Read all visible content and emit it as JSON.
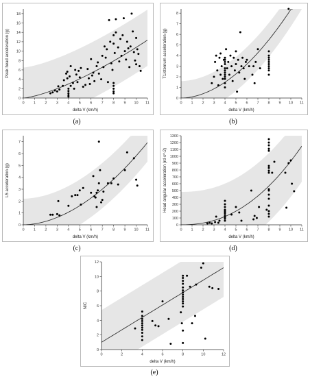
{
  "captions": {
    "a": "(a)",
    "b": "(b)",
    "c": "(c)",
    "d": "(d)",
    "e": "(e)"
  },
  "chart_data": [
    {
      "id": "a",
      "type": "scatter",
      "title": "",
      "xlabel": "delta V (km/h)",
      "ylabel": "Peak head acceleration (g)",
      "xlim": [
        0,
        11
      ],
      "ylim": [
        0,
        19
      ],
      "xticks": [
        0,
        1,
        2,
        3,
        4,
        5,
        6,
        7,
        8,
        9,
        10,
        11
      ],
      "yticks": [
        0,
        2,
        4,
        6,
        8,
        10,
        12,
        14,
        16,
        18
      ],
      "fit": {
        "kind": "power",
        "a": 0.43,
        "b": 1.4
      },
      "band": {
        "lower_offset": -5.5,
        "upper_offset": 6.5
      },
      "points": [
        [
          2.4,
          1.0
        ],
        [
          2.6,
          1.2
        ],
        [
          2.8,
          1.6
        ],
        [
          3.0,
          1.4
        ],
        [
          3.1,
          2.5
        ],
        [
          3.2,
          1.8
        ],
        [
          3.5,
          2.6
        ],
        [
          3.6,
          3.8
        ],
        [
          3.8,
          5.2
        ],
        [
          3.9,
          5.6
        ],
        [
          3.9,
          4.2
        ],
        [
          4.0,
          2.0
        ],
        [
          4.0,
          1.5
        ],
        [
          4.0,
          1.0
        ],
        [
          4.0,
          0.6
        ],
        [
          4.0,
          0.3
        ],
        [
          4.1,
          4.6
        ],
        [
          4.2,
          6.8
        ],
        [
          4.2,
          2.6
        ],
        [
          4.4,
          3.2
        ],
        [
          4.5,
          2.0
        ],
        [
          4.6,
          6.0
        ],
        [
          4.7,
          5.0
        ],
        [
          4.8,
          3.4
        ],
        [
          4.9,
          5.8
        ],
        [
          5.0,
          4.4
        ],
        [
          5.1,
          6.4
        ],
        [
          5.3,
          2.4
        ],
        [
          5.5,
          2.8
        ],
        [
          5.7,
          6.2
        ],
        [
          5.8,
          4.2
        ],
        [
          5.9,
          3.0
        ],
        [
          6.0,
          8.3
        ],
        [
          6.1,
          4.8
        ],
        [
          6.2,
          5.4
        ],
        [
          6.3,
          3.6
        ],
        [
          6.5,
          6.8
        ],
        [
          6.6,
          7.6
        ],
        [
          6.7,
          5.2
        ],
        [
          6.9,
          4.0
        ],
        [
          7.0,
          9.0
        ],
        [
          7.1,
          6.6
        ],
        [
          7.2,
          11.0
        ],
        [
          7.3,
          8.6
        ],
        [
          7.4,
          10.4
        ],
        [
          7.5,
          3.4
        ],
        [
          7.6,
          16.6
        ],
        [
          7.7,
          12.0
        ],
        [
          7.8,
          7.4
        ],
        [
          7.9,
          6.0
        ],
        [
          8.0,
          3.2
        ],
        [
          8.0,
          2.6
        ],
        [
          8.0,
          2.0
        ],
        [
          8.0,
          1.4
        ],
        [
          8.0,
          1.0
        ],
        [
          8.0,
          13.4
        ],
        [
          8.0,
          11.6
        ],
        [
          8.1,
          9.6
        ],
        [
          8.2,
          16.8
        ],
        [
          8.2,
          14.0
        ],
        [
          8.4,
          10.8
        ],
        [
          8.5,
          7.8
        ],
        [
          8.6,
          12.6
        ],
        [
          8.7,
          9.0
        ],
        [
          8.8,
          13.4
        ],
        [
          8.9,
          17.0
        ],
        [
          9.0,
          10.0
        ],
        [
          9.1,
          8.2
        ],
        [
          9.2,
          12.0
        ],
        [
          9.3,
          10.6
        ],
        [
          9.4,
          6.6
        ],
        [
          9.5,
          11.0
        ],
        [
          9.6,
          18.0
        ],
        [
          9.7,
          14.2
        ],
        [
          9.8,
          9.8
        ],
        [
          9.9,
          8.0
        ],
        [
          10.0,
          12.8
        ],
        [
          10.0,
          7.2
        ],
        [
          10.1,
          10.4
        ],
        [
          10.2,
          9.4
        ],
        [
          10.3,
          6.8
        ],
        [
          10.4,
          5.8
        ]
      ]
    },
    {
      "id": "b",
      "type": "scatter",
      "title": "",
      "xlabel": "delta V (km/h)",
      "ylabel": "T1/sternum acceleration (g)",
      "xlim": [
        0,
        11
      ],
      "ylim": [
        0,
        8.4
      ],
      "xticks": [
        0,
        1,
        2,
        3,
        4,
        5,
        6,
        7,
        8,
        9,
        10,
        11
      ],
      "yticks": [
        0,
        1,
        2,
        3,
        4,
        5,
        6,
        7,
        8
      ],
      "fit": {
        "kind": "power",
        "a": 0.11,
        "b": 1.88
      },
      "band": {
        "lower_offset": -1.6,
        "upper_offset": 1.6
      },
      "points": [
        [
          2.8,
          1.4
        ],
        [
          3.0,
          2.0
        ],
        [
          3.1,
          3.4
        ],
        [
          3.2,
          4.0
        ],
        [
          3.3,
          2.6
        ],
        [
          3.4,
          1.2
        ],
        [
          3.5,
          3.8
        ],
        [
          3.6,
          2.2
        ],
        [
          3.6,
          4.2
        ],
        [
          3.7,
          3.0
        ],
        [
          3.8,
          1.8
        ],
        [
          3.9,
          3.6
        ],
        [
          4.0,
          1.0
        ],
        [
          4.0,
          1.4
        ],
        [
          4.0,
          1.8
        ],
        [
          4.0,
          2.0
        ],
        [
          4.0,
          2.2
        ],
        [
          4.0,
          2.4
        ],
        [
          4.0,
          2.6
        ],
        [
          4.0,
          2.8
        ],
        [
          4.0,
          3.2
        ],
        [
          4.0,
          3.4
        ],
        [
          4.0,
          3.6
        ],
        [
          4.0,
          3.8
        ],
        [
          4.1,
          4.6
        ],
        [
          4.2,
          2.8
        ],
        [
          4.3,
          3.4
        ],
        [
          4.4,
          2.2
        ],
        [
          4.5,
          4.0
        ],
        [
          4.6,
          3.0
        ],
        [
          4.7,
          1.6
        ],
        [
          4.8,
          3.8
        ],
        [
          4.9,
          2.6
        ],
        [
          5.0,
          4.4
        ],
        [
          5.0,
          3.2
        ],
        [
          5.1,
          0.6
        ],
        [
          5.2,
          3.6
        ],
        [
          5.3,
          2.4
        ],
        [
          5.4,
          6.2
        ],
        [
          5.5,
          3.0
        ],
        [
          5.6,
          3.8
        ],
        [
          5.7,
          2.8
        ],
        [
          5.8,
          1.8
        ],
        [
          5.9,
          3.4
        ],
        [
          6.0,
          3.6
        ],
        [
          6.2,
          3.0
        ],
        [
          6.5,
          2.2
        ],
        [
          6.6,
          3.0
        ],
        [
          6.7,
          1.4
        ],
        [
          6.8,
          3.4
        ],
        [
          7.0,
          4.6
        ],
        [
          7.2,
          2.8
        ],
        [
          8.0,
          2.2
        ],
        [
          8.0,
          2.6
        ],
        [
          8.0,
          2.8
        ],
        [
          8.0,
          3.0
        ],
        [
          8.0,
          3.2
        ],
        [
          8.0,
          3.4
        ],
        [
          8.0,
          3.6
        ],
        [
          8.0,
          3.8
        ],
        [
          8.0,
          4.0
        ],
        [
          8.0,
          4.4
        ],
        [
          9.8,
          8.4
        ]
      ]
    },
    {
      "id": "c",
      "type": "scatter",
      "title": "",
      "xlabel": "delta V (km/h)",
      "ylabel": "L5 acceleration (g)",
      "xlim": [
        0,
        11
      ],
      "ylim": [
        0,
        7.5
      ],
      "xticks": [
        0,
        1,
        2,
        3,
        4,
        5,
        6,
        7,
        8,
        9,
        10,
        11
      ],
      "yticks": [
        0,
        1,
        2,
        3,
        4,
        5,
        6,
        7
      ],
      "fit": {
        "kind": "power",
        "a": 0.082,
        "b": 1.85
      },
      "band": {
        "lower_offset": -1.6,
        "upper_offset": 2.2
      },
      "points": [
        [
          2.4,
          0.85
        ],
        [
          2.6,
          0.85
        ],
        [
          3.0,
          0.9
        ],
        [
          3.1,
          2.0
        ],
        [
          3.2,
          0.8
        ],
        [
          4.0,
          1.6
        ],
        [
          4.3,
          2.4
        ],
        [
          4.6,
          2.5
        ],
        [
          4.8,
          2.5
        ],
        [
          5.0,
          2.9
        ],
        [
          5.1,
          1.7
        ],
        [
          5.3,
          3.1
        ],
        [
          6.0,
          2.7
        ],
        [
          6.2,
          4.1
        ],
        [
          6.3,
          2.4
        ],
        [
          6.4,
          2.3
        ],
        [
          6.5,
          2.7
        ],
        [
          6.5,
          1.5
        ],
        [
          6.6,
          2.9
        ],
        [
          6.7,
          3.5
        ],
        [
          6.7,
          7.0
        ],
        [
          6.8,
          4.6
        ],
        [
          6.9,
          1.9
        ],
        [
          7.0,
          2.1
        ],
        [
          7.1,
          2.8
        ],
        [
          7.5,
          3.5
        ],
        [
          7.8,
          3.5
        ],
        [
          8.0,
          3.9
        ],
        [
          8.4,
          3.4
        ],
        [
          9.0,
          4.6
        ],
        [
          9.2,
          6.1
        ],
        [
          9.8,
          5.6
        ],
        [
          10.0,
          3.8
        ],
        [
          10.1,
          3.3
        ]
      ]
    },
    {
      "id": "d",
      "type": "scatter",
      "title": "",
      "xlabel": "delta V (km/h)",
      "ylabel": "Head angular acceleration (rd·s^-2)",
      "xlim": [
        0,
        11
      ],
      "ylim": [
        0,
        1300
      ],
      "xticks": [
        0,
        1,
        2,
        3,
        4,
        5,
        6,
        7,
        8,
        9,
        10,
        11
      ],
      "yticks": [
        0,
        100,
        200,
        300,
        400,
        500,
        600,
        700,
        800,
        900,
        1000,
        1100,
        1200,
        1300
      ],
      "fit": {
        "kind": "power",
        "a": 5.6,
        "b": 2.22
      },
      "band": {
        "lower_offset": -520,
        "upper_offset": 480
      },
      "points": [
        [
          2.4,
          20
        ],
        [
          2.6,
          30
        ],
        [
          2.8,
          20
        ],
        [
          3.1,
          40
        ],
        [
          3.2,
          120
        ],
        [
          3.4,
          30
        ],
        [
          3.5,
          60
        ],
        [
          4.0,
          60
        ],
        [
          4.0,
          90
        ],
        [
          4.0,
          110
        ],
        [
          4.0,
          130
        ],
        [
          4.0,
          160
        ],
        [
          4.0,
          180
        ],
        [
          4.0,
          200
        ],
        [
          4.0,
          220
        ],
        [
          4.0,
          260
        ],
        [
          4.0,
          300
        ],
        [
          4.0,
          350
        ],
        [
          4.6,
          150
        ],
        [
          5.0,
          260
        ],
        [
          5.3,
          180
        ],
        [
          5.5,
          60
        ],
        [
          6.4,
          500
        ],
        [
          6.6,
          80
        ],
        [
          6.7,
          130
        ],
        [
          6.9,
          100
        ],
        [
          7.1,
          260
        ],
        [
          7.8,
          220
        ],
        [
          8.0,
          120
        ],
        [
          8.0,
          160
        ],
        [
          8.0,
          200
        ],
        [
          8.0,
          280
        ],
        [
          8.0,
          380
        ],
        [
          8.0,
          440
        ],
        [
          8.0,
          500
        ],
        [
          8.0,
          520
        ],
        [
          8.0,
          760
        ],
        [
          8.0,
          790
        ],
        [
          8.0,
          830
        ],
        [
          8.0,
          860
        ],
        [
          8.0,
          1080
        ],
        [
          8.0,
          1110
        ],
        [
          8.0,
          1160
        ],
        [
          8.0,
          1200
        ],
        [
          8.0,
          1250
        ],
        [
          8.3,
          760
        ],
        [
          8.5,
          920
        ],
        [
          9.5,
          760
        ],
        [
          9.6,
          250
        ],
        [
          9.8,
          900
        ],
        [
          10.0,
          940
        ],
        [
          10.1,
          600
        ],
        [
          10.3,
          490
        ]
      ]
    },
    {
      "id": "e",
      "type": "scatter",
      "title": "",
      "xlabel": "delta V (km/h)",
      "ylabel": "NIC",
      "xlim": [
        0,
        12
      ],
      "ylim": [
        0,
        12
      ],
      "xticks": [
        0,
        2,
        4,
        6,
        8,
        10,
        12
      ],
      "yticks": [
        0,
        2,
        4,
        6,
        8,
        10,
        12
      ],
      "fit": {
        "kind": "linear",
        "a": 0.85,
        "b": 1.0
      },
      "band": {
        "lower_offset": -4.0,
        "upper_offset": 4.4
      },
      "points": [
        [
          3.3,
          2.9
        ],
        [
          4.0,
          1.3
        ],
        [
          4.0,
          1.8
        ],
        [
          4.0,
          2.3
        ],
        [
          4.0,
          2.7
        ],
        [
          4.0,
          3.0
        ],
        [
          4.0,
          3.3
        ],
        [
          4.0,
          3.6
        ],
        [
          4.0,
          3.9
        ],
        [
          4.0,
          4.2
        ],
        [
          4.0,
          4.6
        ],
        [
          4.0,
          5.2
        ],
        [
          5.0,
          3.9
        ],
        [
          5.3,
          3.3
        ],
        [
          5.6,
          3.2
        ],
        [
          6.0,
          6.6
        ],
        [
          6.6,
          4.2
        ],
        [
          6.8,
          0.8
        ],
        [
          7.8,
          5.1
        ],
        [
          7.9,
          3.6
        ],
        [
          8.0,
          0.9
        ],
        [
          8.0,
          2.6
        ],
        [
          8.0,
          5.9
        ],
        [
          8.0,
          6.3
        ],
        [
          8.0,
          6.6
        ],
        [
          8.0,
          6.9
        ],
        [
          8.0,
          7.2
        ],
        [
          8.0,
          7.5
        ],
        [
          8.0,
          7.8
        ],
        [
          8.0,
          8.1
        ],
        [
          8.0,
          8.5
        ],
        [
          8.0,
          9.0
        ],
        [
          8.0,
          9.4
        ],
        [
          8.0,
          9.8
        ],
        [
          8.0,
          10.1
        ],
        [
          8.4,
          10.1
        ],
        [
          8.7,
          8.6
        ],
        [
          8.9,
          3.6
        ],
        [
          9.2,
          4.6
        ],
        [
          9.3,
          8.9
        ],
        [
          9.8,
          11.2
        ],
        [
          10.0,
          11.8
        ],
        [
          10.2,
          1.5
        ],
        [
          10.6,
          8.6
        ],
        [
          10.9,
          8.4
        ],
        [
          11.5,
          8.3
        ]
      ]
    }
  ]
}
